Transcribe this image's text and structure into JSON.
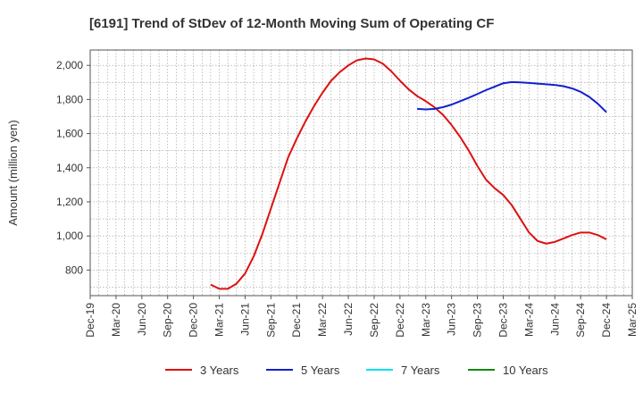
{
  "chart_data": {
    "type": "line",
    "title": "[6191]  Trend of StDev of 12-Month Moving Sum of Operating CF",
    "xlabel": "",
    "ylabel": "Amount (million yen)",
    "ylim": [
      650,
      2090
    ],
    "yticks": [
      800,
      1000,
      1200,
      1400,
      1600,
      1800,
      2000
    ],
    "ytick_labels": [
      "800",
      "1,000",
      "1,200",
      "1,400",
      "1,600",
      "1,800",
      "2,000"
    ],
    "x_start": "2019-12",
    "x_end": "2025-03",
    "xtick_labels": [
      "Dec-19",
      "Mar-20",
      "Jun-20",
      "Sep-20",
      "Dec-20",
      "Mar-21",
      "Jun-21",
      "Sep-21",
      "Dec-21",
      "Mar-22",
      "Jun-22",
      "Sep-22",
      "Dec-22",
      "Mar-23",
      "Jun-23",
      "Sep-23",
      "Dec-23",
      "Mar-24",
      "Jun-24",
      "Sep-24",
      "Dec-24",
      "Mar-25"
    ],
    "grid": true,
    "legend_position": "bottom",
    "series": [
      {
        "name": "3 Years",
        "color": "#dd1111",
        "points": [
          [
            "2021-02",
            715
          ],
          [
            "2021-03",
            690
          ],
          [
            "2021-04",
            690
          ],
          [
            "2021-05",
            720
          ],
          [
            "2021-06",
            780
          ],
          [
            "2021-07",
            880
          ],
          [
            "2021-08",
            1010
          ],
          [
            "2021-09",
            1160
          ],
          [
            "2021-10",
            1310
          ],
          [
            "2021-11",
            1460
          ],
          [
            "2021-12",
            1570
          ],
          [
            "2022-01",
            1670
          ],
          [
            "2022-02",
            1760
          ],
          [
            "2022-03",
            1840
          ],
          [
            "2022-04",
            1910
          ],
          [
            "2022-05",
            1960
          ],
          [
            "2022-06",
            2000
          ],
          [
            "2022-07",
            2030
          ],
          [
            "2022-08",
            2040
          ],
          [
            "2022-09",
            2035
          ],
          [
            "2022-10",
            2010
          ],
          [
            "2022-11",
            1965
          ],
          [
            "2022-12",
            1910
          ],
          [
            "2023-01",
            1860
          ],
          [
            "2023-02",
            1820
          ],
          [
            "2023-03",
            1790
          ],
          [
            "2023-04",
            1755
          ],
          [
            "2023-05",
            1710
          ],
          [
            "2023-06",
            1650
          ],
          [
            "2023-07",
            1580
          ],
          [
            "2023-08",
            1500
          ],
          [
            "2023-09",
            1410
          ],
          [
            "2023-10",
            1330
          ],
          [
            "2023-11",
            1280
          ],
          [
            "2023-12",
            1240
          ],
          [
            "2024-01",
            1180
          ],
          [
            "2024-02",
            1100
          ],
          [
            "2024-03",
            1020
          ],
          [
            "2024-04",
            970
          ],
          [
            "2024-05",
            955
          ],
          [
            "2024-06",
            965
          ],
          [
            "2024-07",
            985
          ],
          [
            "2024-08",
            1005
          ],
          [
            "2024-09",
            1020
          ],
          [
            "2024-10",
            1020
          ],
          [
            "2024-11",
            1005
          ],
          [
            "2024-12",
            980
          ]
        ]
      },
      {
        "name": "5 Years",
        "color": "#1122cc",
        "points": [
          [
            "2023-02",
            1745
          ],
          [
            "2023-03",
            1742
          ],
          [
            "2023-04",
            1745
          ],
          [
            "2023-05",
            1755
          ],
          [
            "2023-06",
            1770
          ],
          [
            "2023-07",
            1790
          ],
          [
            "2023-08",
            1810
          ],
          [
            "2023-09",
            1832
          ],
          [
            "2023-10",
            1855
          ],
          [
            "2023-11",
            1875
          ],
          [
            "2023-12",
            1895
          ],
          [
            "2024-01",
            1902
          ],
          [
            "2024-02",
            1900
          ],
          [
            "2024-03",
            1897
          ],
          [
            "2024-04",
            1893
          ],
          [
            "2024-05",
            1889
          ],
          [
            "2024-06",
            1885
          ],
          [
            "2024-07",
            1878
          ],
          [
            "2024-08",
            1865
          ],
          [
            "2024-09",
            1845
          ],
          [
            "2024-10",
            1815
          ],
          [
            "2024-11",
            1775
          ],
          [
            "2024-12",
            1725
          ]
        ]
      },
      {
        "name": "7 Years",
        "color": "#00e5ee",
        "points": []
      },
      {
        "name": "10 Years",
        "color": "#118811",
        "points": []
      }
    ]
  }
}
